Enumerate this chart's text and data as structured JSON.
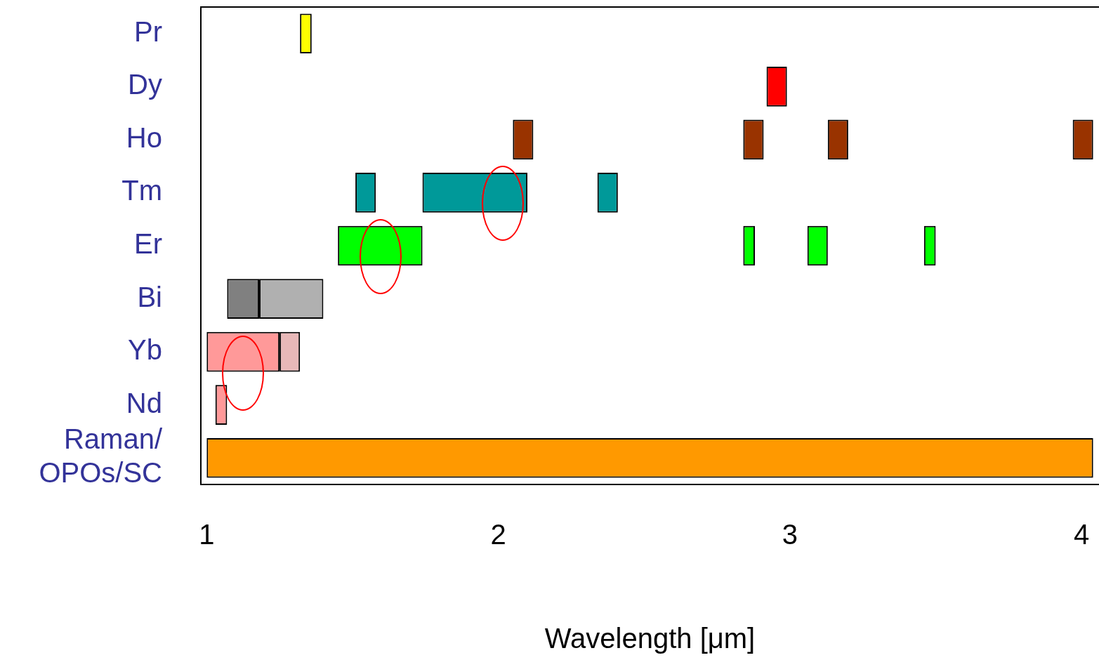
{
  "chart_data": {
    "type": "bar",
    "orientation": "horizontal",
    "xlabel": "Wavelength [μm]",
    "categories": [
      "Pr",
      "Dy",
      "Ho",
      "Tm",
      "Er",
      "Bi",
      "Yb",
      "Nd",
      "Raman/ OPOs/SC"
    ],
    "series": [
      {
        "colors": [
          "#ffff00",
          "#ff0000",
          "#993300",
          "#009999",
          "#00ff00",
          "#808080",
          "#ff9999",
          "#ff9999",
          "#ff9900"
        ],
        "base": [
          1.32,
          2.92,
          2.05,
          1.51,
          1.45,
          1.07,
          1.0,
          1.03,
          1.0
        ],
        "values": [
          0.04,
          0.07,
          0.07,
          0.07,
          0.29,
          0.11,
          0.25,
          0.04,
          3.04
        ]
      },
      {
        "colors": [
          null,
          null,
          "#993300",
          "#009999",
          "#00ff00",
          "#b0b0b0",
          "#e8b8b8",
          null,
          null
        ],
        "base": [
          null,
          null,
          2.84,
          1.74,
          2.84,
          1.18,
          1.25,
          null,
          null
        ],
        "values": [
          null,
          null,
          0.07,
          0.36,
          0.04,
          0.22,
          0.07,
          null,
          null
        ]
      },
      {
        "colors": [
          null,
          null,
          "#993300",
          "#009999",
          "#00ff00",
          null,
          null,
          null,
          null
        ],
        "base": [
          null,
          null,
          3.13,
          2.34,
          3.06,
          null,
          null,
          null,
          null
        ],
        "values": [
          null,
          null,
          0.07,
          0.07,
          0.07,
          null,
          null,
          null,
          null
        ]
      },
      {
        "colors": [
          null,
          null,
          "#993300",
          null,
          "#00ff00",
          null,
          null,
          null,
          null
        ],
        "base": [
          null,
          null,
          3.97,
          null,
          3.46,
          null,
          null,
          null,
          null
        ],
        "values": [
          null,
          null,
          0.07,
          null,
          0.04,
          null,
          null,
          null,
          null
        ]
      }
    ],
    "xlim": [
      0.98,
      4.06
    ],
    "xticks": [
      1,
      2,
      3,
      4
    ],
    "grid": false,
    "legend": false
  }
}
